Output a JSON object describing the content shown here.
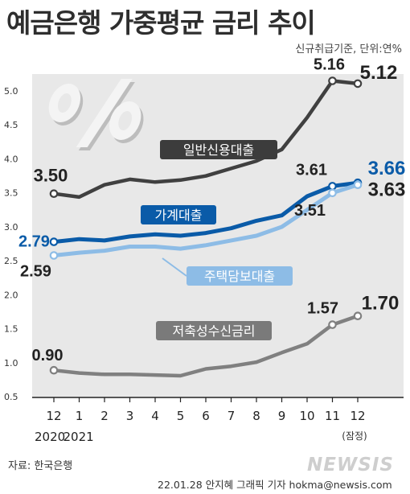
{
  "title": "예금은행 가중평균 금리 추이",
  "subtitle": "신규취급기준, 단위:연%",
  "source": "자료: 한국은행",
  "credit": "22.01.28 안지혜 그래픽 기자 hokma@newsis.com",
  "watermark": "NEWSIS",
  "colors": {
    "general_loan": "#404040",
    "household_loan": "#0a5ba8",
    "mortgage": "#8dbce6",
    "savings": "#808080",
    "plot_bg": "#e8e8e8"
  },
  "chart_data": {
    "type": "line",
    "categories": [
      "12",
      "1",
      "2",
      "3",
      "4",
      "5",
      "6",
      "7",
      "8",
      "9",
      "10",
      "11",
      "12"
    ],
    "x_year_labels": [
      "2020",
      "2021"
    ],
    "x_note": "(잠정)",
    "ylim": [
      0.5,
      5.25
    ],
    "yticks": [
      "0.5",
      "1.0",
      "1.5",
      "2.0",
      "2.5",
      "3.0",
      "3.5",
      "4.0",
      "4.5",
      "5.0"
    ],
    "grid": false,
    "series": [
      {
        "key": "general_loan",
        "name": "일반신용대출",
        "label_style": "plain",
        "values": [
          3.5,
          3.45,
          3.63,
          3.71,
          3.67,
          3.7,
          3.76,
          3.87,
          3.98,
          4.15,
          4.62,
          5.16,
          5.12
        ],
        "labels": [
          {
            "index": 0,
            "text": "3.50"
          },
          {
            "index": 11,
            "text": "5.16"
          },
          {
            "index": 12,
            "text": "5.12"
          }
        ]
      },
      {
        "key": "household_loan",
        "name": "가계대출",
        "label_style": "box",
        "values": [
          2.79,
          2.83,
          2.81,
          2.87,
          2.9,
          2.88,
          2.92,
          2.99,
          3.1,
          3.18,
          3.46,
          3.61,
          3.66
        ],
        "labels": [
          {
            "index": 0,
            "text": "2.79"
          },
          {
            "index": 11,
            "text": "3.61"
          },
          {
            "index": 12,
            "text": "3.66"
          }
        ]
      },
      {
        "key": "mortgage",
        "name": "주택담보대출",
        "label_style": "box",
        "values": [
          2.59,
          2.63,
          2.66,
          2.72,
          2.72,
          2.69,
          2.74,
          2.81,
          2.88,
          3.01,
          3.26,
          3.51,
          3.63
        ],
        "labels": [
          {
            "index": 0,
            "text": "2.59"
          },
          {
            "index": 11,
            "text": "3.51"
          },
          {
            "index": 12,
            "text": "3.63"
          }
        ]
      },
      {
        "key": "savings",
        "name": "저축성수신금리",
        "label_style": "plain",
        "values": [
          0.9,
          0.86,
          0.84,
          0.84,
          0.83,
          0.82,
          0.92,
          0.96,
          1.02,
          1.16,
          1.29,
          1.57,
          1.7
        ],
        "labels": [
          {
            "index": 0,
            "text": "0.90"
          },
          {
            "index": 11,
            "text": "1.57"
          },
          {
            "index": 12,
            "text": "1.70"
          }
        ]
      }
    ]
  }
}
